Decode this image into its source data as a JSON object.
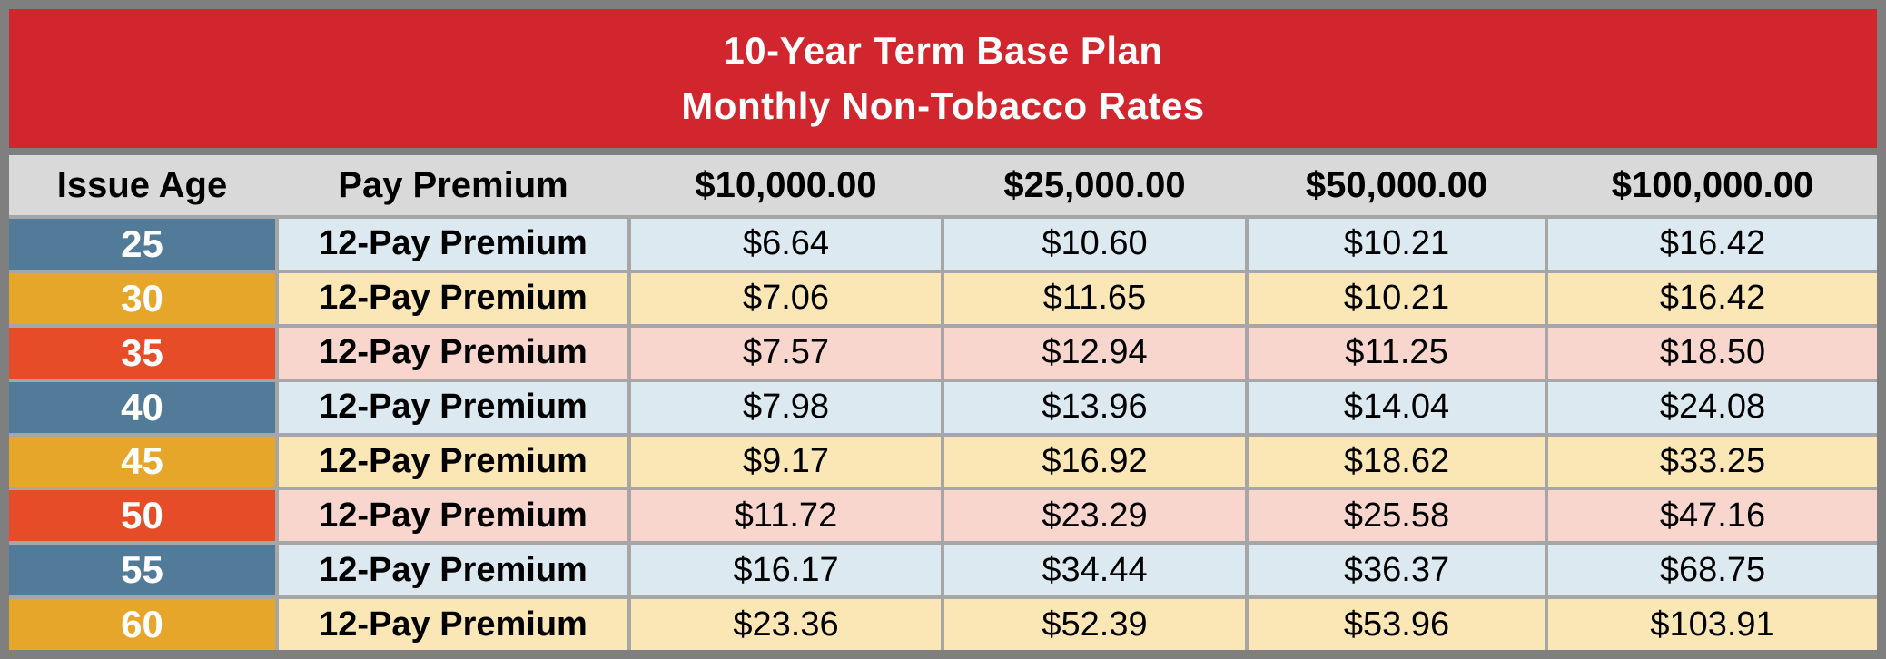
{
  "title": {
    "line1": "10-Year Term Base Plan",
    "line2": "Monthly Non-Tobacco Rates"
  },
  "table": {
    "headers": {
      "issue_age": "Issue Age",
      "pay_premium": "Pay Premium",
      "face_10000": "$10,000.00",
      "face_25000": "$25,000.00",
      "face_50000": "$50,000.00",
      "face_100000": "$100,000.00"
    },
    "rows": [
      {
        "age": "25",
        "premium_type": "12-Pay Premium",
        "rate_10000": "$6.64",
        "rate_25000": "$10.60",
        "rate_50000": "$10.21",
        "rate_100000": "$16.42"
      },
      {
        "age": "30",
        "premium_type": "12-Pay Premium",
        "rate_10000": "$7.06",
        "rate_25000": "$11.65",
        "rate_50000": "$10.21",
        "rate_100000": "$16.42"
      },
      {
        "age": "35",
        "premium_type": "12-Pay Premium",
        "rate_10000": "$7.57",
        "rate_25000": "$12.94",
        "rate_50000": "$11.25",
        "rate_100000": "$18.50"
      },
      {
        "age": "40",
        "premium_type": "12-Pay Premium",
        "rate_10000": "$7.98",
        "rate_25000": "$13.96",
        "rate_50000": "$14.04",
        "rate_100000": "$24.08"
      },
      {
        "age": "45",
        "premium_type": "12-Pay Premium",
        "rate_10000": "$9.17",
        "rate_25000": "$16.92",
        "rate_50000": "$18.62",
        "rate_100000": "$33.25"
      },
      {
        "age": "50",
        "premium_type": "12-Pay Premium",
        "rate_10000": "$11.72",
        "rate_25000": "$23.29",
        "rate_50000": "$25.58",
        "rate_100000": "$47.16"
      },
      {
        "age": "55",
        "premium_type": "12-Pay Premium",
        "rate_10000": "$16.17",
        "rate_25000": "$34.44",
        "rate_50000": "$36.37",
        "rate_100000": "$68.75"
      },
      {
        "age": "60",
        "premium_type": "12-Pay Premium",
        "rate_10000": "$23.36",
        "rate_25000": "$52.39",
        "rate_50000": "$53.96",
        "rate_100000": "$103.91"
      }
    ]
  },
  "colors": {
    "banner_red": "#d2262e",
    "header_gray": "#d9d9d9",
    "outer_border_gray": "#7f7f7f",
    "gridline_gray": "#a6a6a6",
    "age_blue": "#517b99",
    "age_gold": "#e5a62a",
    "age_red_orange": "#e74c28",
    "row_light_blue": "#dce9f0",
    "row_cream": "#fbe7b5",
    "row_pink": "#f8d6ce",
    "title_text": "#ffffff",
    "body_text": "#000000"
  }
}
